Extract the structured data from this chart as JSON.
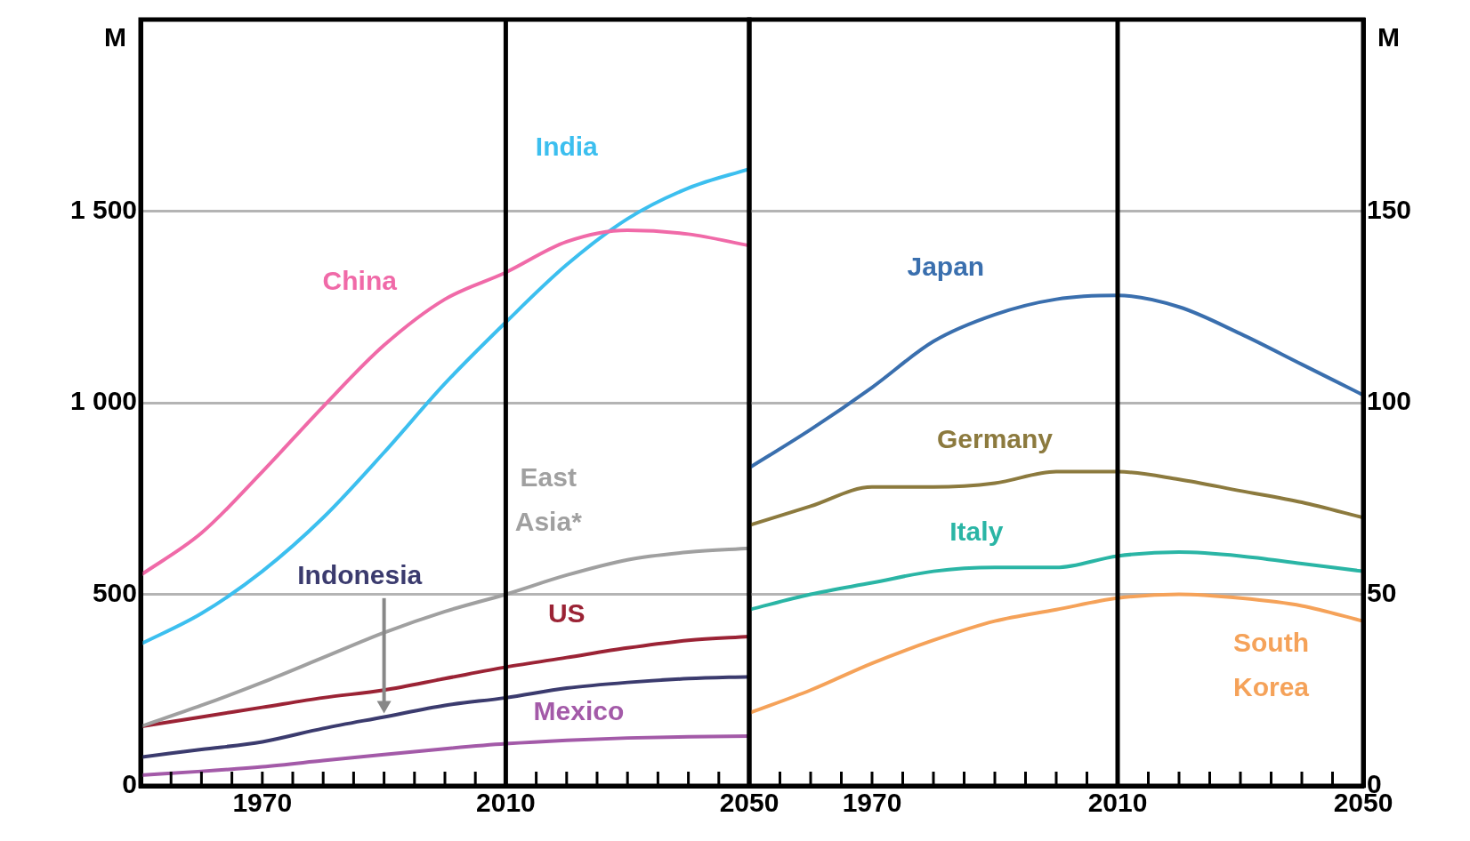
{
  "chart_data": [
    {
      "type": "line",
      "ylabel": "M",
      "legend": false,
      "grid": "y",
      "marker": "none",
      "line_style": "solid",
      "x": [
        1950,
        1960,
        1970,
        1980,
        1990,
        2000,
        2010,
        2020,
        2030,
        2040,
        2050
      ],
      "xlim": [
        1950,
        2050
      ],
      "xticks": [
        {
          "value": 1955,
          "label": null
        },
        {
          "value": 1960,
          "label": null
        },
        {
          "value": 1965,
          "label": null
        },
        1970,
        {
          "value": 1975,
          "label": null
        },
        {
          "value": 1980,
          "label": null
        },
        {
          "value": 1985,
          "label": null
        },
        {
          "value": 1990,
          "label": null
        },
        {
          "value": 1995,
          "label": null
        },
        {
          "value": 2000,
          "label": null
        },
        {
          "value": 2005,
          "label": null
        },
        2010,
        {
          "value": 2015,
          "label": null
        },
        {
          "value": 2020,
          "label": null
        },
        {
          "value": 2025,
          "label": null
        },
        {
          "value": 2030,
          "label": null
        },
        {
          "value": 2035,
          "label": null
        },
        {
          "value": 2040,
          "label": null
        },
        {
          "value": 2045,
          "label": null
        },
        2050
      ],
      "ylim": [
        0,
        2000
      ],
      "yticks": [
        0,
        500,
        {
          "value": 1000,
          "label": "1 000"
        },
        {
          "value": 1500,
          "label": "1 500"
        }
      ],
      "ref_lines": [
        {
          "axis": "x",
          "value": 2010,
          "color": "#000000"
        }
      ],
      "series": [
        {
          "name": "China",
          "color": "#f06aa8",
          "values": [
            550,
            660,
            820,
            990,
            1150,
            1270,
            1340,
            1420,
            1450,
            1440,
            1410
          ]
        },
        {
          "name": "India",
          "color": "#3cbfef",
          "values": [
            370,
            450,
            560,
            700,
            870,
            1050,
            1210,
            1360,
            1480,
            1560,
            1610
          ]
        },
        {
          "name": "East Asia*",
          "color": "#a0a0a0",
          "values": [
            155,
            210,
            270,
            335,
            400,
            455,
            500,
            550,
            590,
            610,
            620
          ]
        },
        {
          "name": "Indonesia",
          "color": "#3b3b6e",
          "values": [
            75,
            95,
            115,
            150,
            180,
            210,
            230,
            255,
            270,
            280,
            285
          ]
        },
        {
          "name": "US",
          "color": "#9b2335",
          "values": [
            155,
            180,
            205,
            230,
            250,
            280,
            310,
            335,
            360,
            380,
            390
          ]
        },
        {
          "name": "Mexico",
          "color": "#a35aa8",
          "values": [
            28,
            38,
            50,
            66,
            82,
            97,
            110,
            119,
            125,
            128,
            130
          ]
        }
      ]
    },
    {
      "type": "line",
      "y2label": "M",
      "legend": false,
      "grid": "y",
      "marker": "none",
      "line_style": "solid",
      "x": [
        1950,
        1960,
        1970,
        1980,
        1990,
        2000,
        2010,
        2020,
        2030,
        2040,
        2050
      ],
      "xlim": [
        1950,
        2050
      ],
      "xticks": [
        {
          "value": 1955,
          "label": null
        },
        {
          "value": 1960,
          "label": null
        },
        {
          "value": 1965,
          "label": null
        },
        1970,
        {
          "value": 1975,
          "label": null
        },
        {
          "value": 1980,
          "label": null
        },
        {
          "value": 1985,
          "label": null
        },
        {
          "value": 1990,
          "label": null
        },
        {
          "value": 1995,
          "label": null
        },
        {
          "value": 2000,
          "label": null
        },
        {
          "value": 2005,
          "label": null
        },
        2010,
        {
          "value": 2015,
          "label": null
        },
        {
          "value": 2020,
          "label": null
        },
        {
          "value": 2025,
          "label": null
        },
        {
          "value": 2030,
          "label": null
        },
        {
          "value": 2035,
          "label": null
        },
        {
          "value": 2040,
          "label": null
        },
        {
          "value": 2045,
          "label": null
        },
        2050
      ],
      "y2lim": [
        0,
        200
      ],
      "y2ticks": [
        0,
        50,
        100,
        150
      ],
      "ref_lines": [
        {
          "axis": "x",
          "value": 2010,
          "color": "#000000"
        }
      ],
      "series": [
        {
          "name": "Japan",
          "color": "#3a6fae",
          "axis": "y2",
          "values": [
            83,
            93,
            104,
            116,
            123,
            127,
            128,
            125,
            118,
            110,
            102
          ]
        },
        {
          "name": "Germany",
          "color": "#8c7a3e",
          "axis": "y2",
          "values": [
            68,
            73,
            78,
            78,
            79,
            82,
            82,
            80,
            77,
            74,
            70
          ]
        },
        {
          "name": "Italy",
          "color": "#2ab5a5",
          "axis": "y2",
          "values": [
            46,
            50,
            53,
            56,
            57,
            57,
            60,
            61,
            60,
            58,
            56
          ]
        },
        {
          "name": "South Korea",
          "color": "#f5a259",
          "axis": "y2",
          "values": [
            19,
            25,
            32,
            38,
            43,
            46,
            49,
            50,
            49,
            47,
            43
          ]
        }
      ]
    }
  ]
}
